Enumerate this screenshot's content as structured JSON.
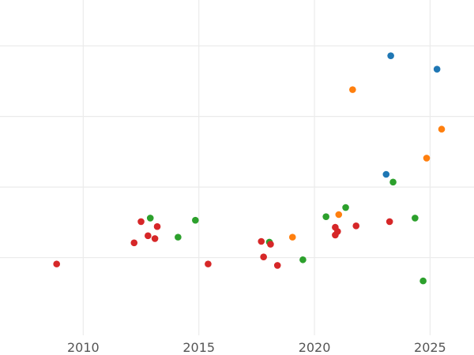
{
  "chart_data": {
    "type": "scatter",
    "title": "",
    "xlabel": "",
    "ylabel": "",
    "xlim": [
      2006.4,
      2026.9
    ],
    "ylim": [
      -0.1,
      4.65
    ],
    "x_ticks": [
      2010,
      2015,
      2020,
      2025
    ],
    "x_tick_labels": [
      "2010",
      "2015",
      "2020",
      "2025"
    ],
    "y_gridlines": [
      1,
      2,
      3,
      4
    ],
    "grid": true,
    "colors": [
      "#1f77b4",
      "#ff7f0e",
      "#2ca02c",
      "#d62728"
    ],
    "series": [
      {
        "color": "#1f77b4",
        "points": [
          {
            "x": 2023.3,
            "y": 3.86
          },
          {
            "x": 2025.3,
            "y": 3.67
          },
          {
            "x": 2023.1,
            "y": 2.18
          }
        ]
      },
      {
        "color": "#ff7f0e",
        "points": [
          {
            "x": 2021.65,
            "y": 3.38
          },
          {
            "x": 2025.5,
            "y": 2.82
          },
          {
            "x": 2024.85,
            "y": 2.41
          },
          {
            "x": 2021.05,
            "y": 1.61
          },
          {
            "x": 2019.05,
            "y": 1.29
          }
        ]
      },
      {
        "color": "#2ca02c",
        "points": [
          {
            "x": 2023.4,
            "y": 2.07
          },
          {
            "x": 2021.35,
            "y": 1.71
          },
          {
            "x": 2020.5,
            "y": 1.58
          },
          {
            "x": 2024.35,
            "y": 1.56
          },
          {
            "x": 2012.9,
            "y": 1.56
          },
          {
            "x": 2014.85,
            "y": 1.53
          },
          {
            "x": 2014.1,
            "y": 1.29
          },
          {
            "x": 2018.05,
            "y": 1.22
          },
          {
            "x": 2019.5,
            "y": 0.97
          },
          {
            "x": 2024.7,
            "y": 0.67
          }
        ]
      },
      {
        "color": "#d62728",
        "points": [
          {
            "x": 2008.85,
            "y": 0.91
          },
          {
            "x": 2012.5,
            "y": 1.51
          },
          {
            "x": 2013.2,
            "y": 1.44
          },
          {
            "x": 2012.8,
            "y": 1.31
          },
          {
            "x": 2013.1,
            "y": 1.27
          },
          {
            "x": 2012.2,
            "y": 1.21
          },
          {
            "x": 2015.4,
            "y": 0.91
          },
          {
            "x": 2017.7,
            "y": 1.23
          },
          {
            "x": 2018.1,
            "y": 1.19
          },
          {
            "x": 2017.8,
            "y": 1.01
          },
          {
            "x": 2018.4,
            "y": 0.89
          },
          {
            "x": 2020.9,
            "y": 1.43
          },
          {
            "x": 2021.0,
            "y": 1.37
          },
          {
            "x": 2020.9,
            "y": 1.32
          },
          {
            "x": 2021.8,
            "y": 1.45
          },
          {
            "x": 2023.25,
            "y": 1.51
          }
        ]
      }
    ]
  }
}
